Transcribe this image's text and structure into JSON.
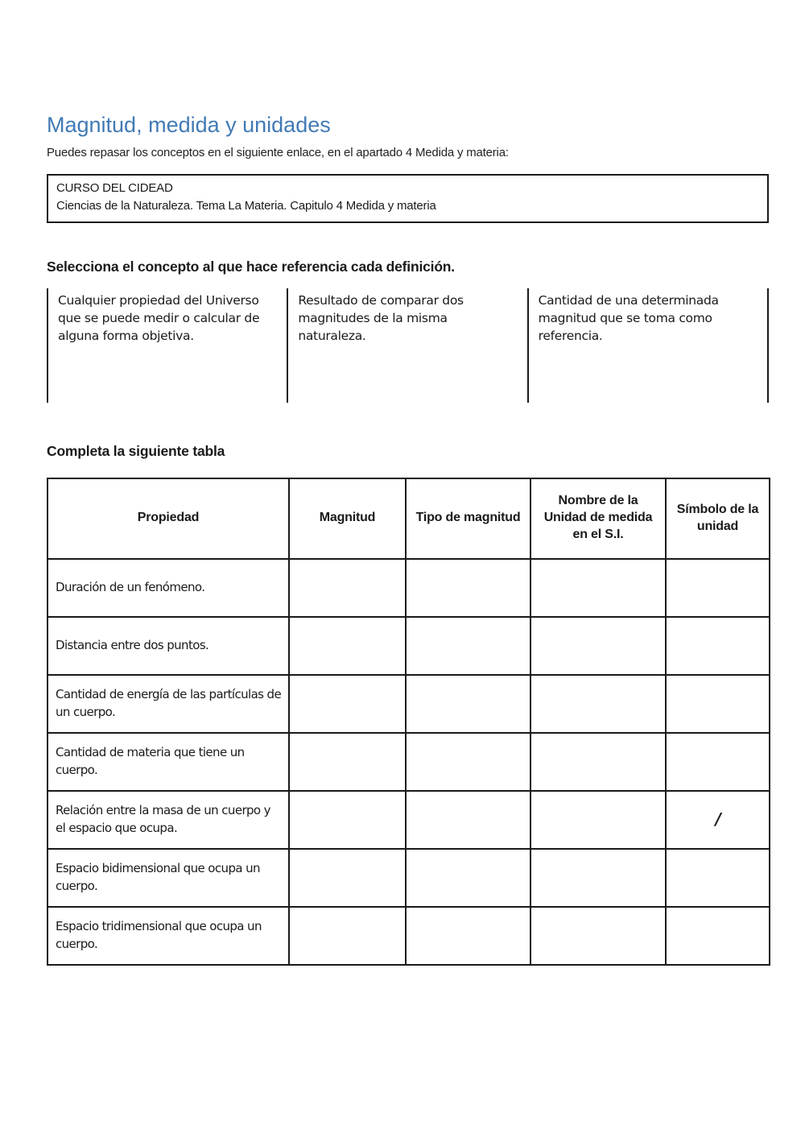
{
  "colors": {
    "title_blue": "#417ab5",
    "text": "#1a1a1a",
    "border": "#1a1a1a",
    "background": "#ffffff"
  },
  "header": {
    "title": "Magnitud, medida y unidades",
    "intro": "Puedes repasar los conceptos en el siguiente enlace, en el apartado 4 Medida y materia:"
  },
  "reference_box": {
    "line1": "CURSO DEL CIDEAD",
    "line2": "Ciencias de la Naturaleza. Tema La Materia. Capitulo 4 Medida y materia"
  },
  "definitions_section": {
    "heading": "Selecciona el concepto al que hace referencia cada definición.",
    "items": [
      {
        "text": "Cualquier propiedad del Universo que se puede medir o calcular de alguna forma objetiva."
      },
      {
        "text": "Resultado de comparar dos magnitudes de la misma naturaleza."
      },
      {
        "text": "Cantidad de una determinada magnitud que se toma como referencia."
      }
    ]
  },
  "table_section": {
    "heading": "Completa la siguiente tabla",
    "table": {
      "headers": [
        "Propiedad",
        "Magnitud",
        "Tipo de magnitud",
        "Nombre de la Unidad de medida en el S.I.",
        "Símbolo de la unidad"
      ],
      "rows": [
        [
          "Duración de un fenómeno.",
          "",
          "",
          "",
          ""
        ],
        [
          "Distancia entre dos puntos.",
          "",
          "",
          "",
          ""
        ],
        [
          "Cantidad de energía de las partículas de un cuerpo.",
          "",
          "",
          "",
          ""
        ],
        [
          "Cantidad de materia que tiene un cuerpo.",
          "",
          "",
          "",
          ""
        ],
        [
          "Relación entre la masa de un cuerpo y el espacio que ocupa.",
          "",
          "",
          "",
          "/"
        ],
        [
          "Espacio bidimensional que ocupa un cuerpo.",
          "",
          "",
          "",
          ""
        ],
        [
          "Espacio tridimensional que ocupa un cuerpo.",
          "",
          "",
          "",
          ""
        ]
      ]
    }
  }
}
